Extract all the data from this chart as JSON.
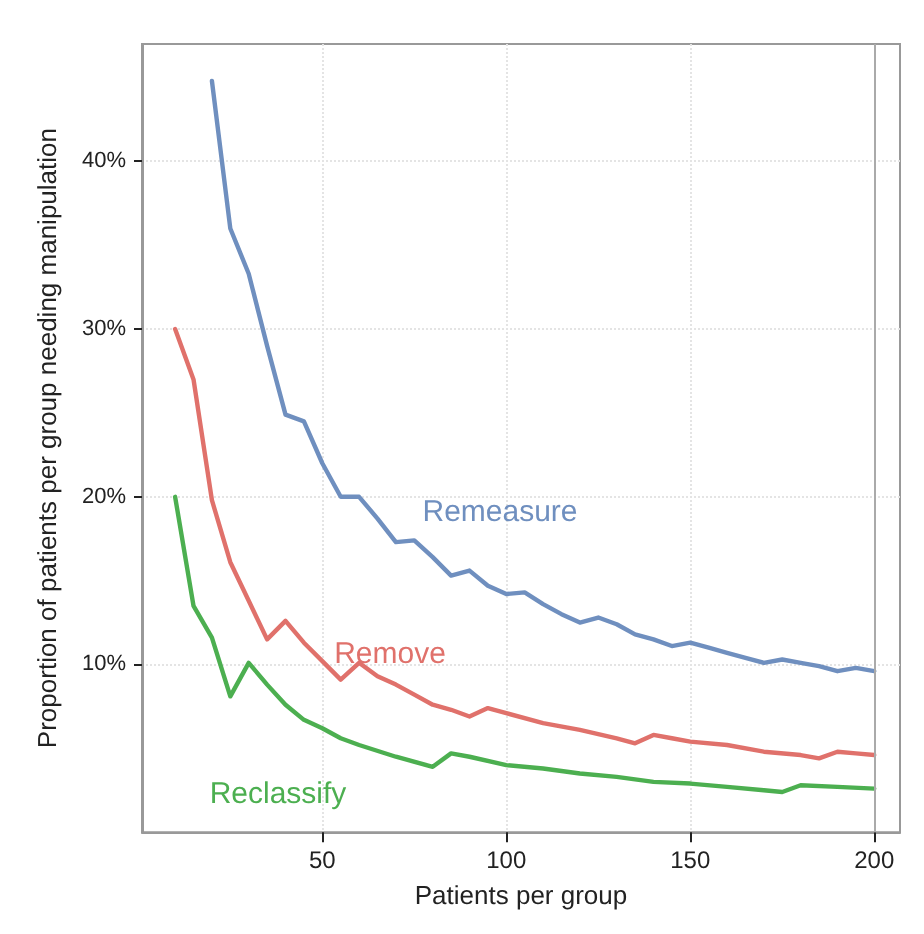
{
  "chart_data": {
    "type": "line",
    "xlabel": "Patients per group",
    "ylabel": "Proportion of patients per group needing manipulation",
    "xlim": [
      1,
      207
    ],
    "xticks": [
      50,
      100,
      150,
      200
    ],
    "ylim": [
      0,
      47
    ],
    "yticks": [
      {
        "value": 10,
        "label": "10%"
      },
      {
        "value": 20,
        "label": "20%"
      },
      {
        "value": 30,
        "label": "30%"
      },
      {
        "value": 40,
        "label": "40%"
      }
    ],
    "grid": true,
    "legend": false,
    "marker": "none",
    "line_style": "solid",
    "ref_lines": [
      {
        "axis": "x",
        "value": 200,
        "color": "#aaaaaa"
      }
    ],
    "series": [
      {
        "name": "Remeasure",
        "color": "#6f8fbf",
        "x": [
          20,
          25,
          30,
          35,
          40,
          45,
          50,
          55,
          60,
          65,
          70,
          75,
          80,
          85,
          90,
          95,
          100,
          105,
          110,
          115,
          120,
          125,
          130,
          135,
          140,
          145,
          150,
          155,
          160,
          165,
          170,
          175,
          180,
          185,
          190,
          195,
          200
        ],
        "values": [
          44.8,
          36.0,
          33.3,
          29.0,
          24.9,
          24.5,
          22.0,
          20.0,
          20.0,
          18.7,
          17.3,
          17.4,
          16.4,
          15.3,
          15.6,
          14.7,
          14.2,
          14.3,
          13.6,
          13.0,
          12.5,
          12.8,
          12.4,
          11.8,
          11.5,
          11.1,
          11.3,
          11.0,
          10.7,
          10.4,
          10.1,
          10.3,
          10.1,
          9.9,
          9.6,
          9.8,
          9.6
        ]
      },
      {
        "name": "Remove",
        "color": "#e0716b",
        "x": [
          10,
          15,
          20,
          25,
          30,
          35,
          40,
          45,
          50,
          55,
          60,
          65,
          70,
          75,
          80,
          85,
          90,
          95,
          100,
          110,
          120,
          130,
          135,
          140,
          145,
          150,
          160,
          170,
          180,
          185,
          190,
          195,
          200
        ],
        "values": [
          30.0,
          27.0,
          19.8,
          16.1,
          13.8,
          11.5,
          12.6,
          11.3,
          10.2,
          9.1,
          10.1,
          9.3,
          8.8,
          8.2,
          7.6,
          7.3,
          6.9,
          7.4,
          7.1,
          6.5,
          6.1,
          5.6,
          5.3,
          5.8,
          5.6,
          5.4,
          5.2,
          4.8,
          4.6,
          4.4,
          4.8,
          4.7,
          4.6
        ]
      },
      {
        "name": "Reclassify",
        "color": "#4caf50",
        "x": [
          10,
          15,
          20,
          25,
          30,
          35,
          40,
          45,
          50,
          55,
          60,
          70,
          80,
          85,
          90,
          100,
          110,
          120,
          130,
          140,
          150,
          160,
          170,
          175,
          180,
          190,
          200
        ],
        "values": [
          20.0,
          13.5,
          11.6,
          8.1,
          10.1,
          8.8,
          7.6,
          6.7,
          6.2,
          5.6,
          5.2,
          4.5,
          3.9,
          4.7,
          4.5,
          4.0,
          3.8,
          3.5,
          3.3,
          3.0,
          2.9,
          2.7,
          2.5,
          2.4,
          2.8,
          2.7,
          2.6
        ]
      }
    ]
  }
}
